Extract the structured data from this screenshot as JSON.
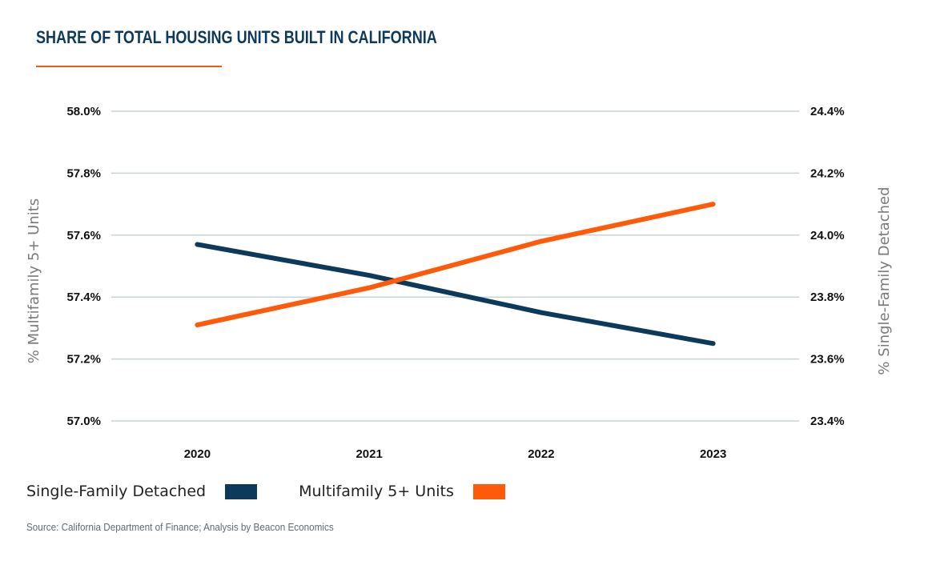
{
  "title": "SHARE OF TOTAL HOUSING UNITS BUILT IN CALIFORNIA",
  "source": "Source: California Department of Finance; Analysis by Beacon Economics",
  "colors": {
    "title": "#0d3a5c",
    "accent_rule": "#f05a14",
    "single_family": "#0b3a5c",
    "multifamily": "#ff5a0a",
    "grid": "#c9d3d6"
  },
  "chart_data": {
    "type": "line",
    "title": "SHARE OF TOTAL HOUSING UNITS BUILT IN CALIFORNIA",
    "categories": [
      "2020",
      "2021",
      "2022",
      "2023"
    ],
    "xlabel": "",
    "left_axis": {
      "label": "% Multifamily 5+ Units",
      "range": [
        57.0,
        58.0
      ],
      "ticks": [
        "57.0%",
        "57.2%",
        "57.4%",
        "57.6%",
        "57.8%",
        "58.0%"
      ],
      "tick_values": [
        57.0,
        57.2,
        57.4,
        57.6,
        57.8,
        58.0
      ]
    },
    "right_axis": {
      "label": "% Single-Family Detached",
      "range": [
        23.4,
        24.4
      ],
      "ticks": [
        "23.4%",
        "23.6%",
        "23.8%",
        "24.0%",
        "24.2%",
        "24.4%"
      ],
      "tick_values": [
        23.4,
        23.6,
        23.8,
        24.0,
        24.2,
        24.4
      ]
    },
    "grid": true,
    "legend_position": "bottom-left",
    "series": [
      {
        "name": "Single-Family Detached",
        "axis": "right",
        "color": "#0b3a5c",
        "values": [
          23.97,
          23.87,
          23.75,
          23.65
        ]
      },
      {
        "name": "Multifamily 5+ Units",
        "axis": "left",
        "color": "#ff5a0a",
        "values": [
          57.31,
          57.43,
          57.58,
          57.7
        ]
      }
    ]
  }
}
